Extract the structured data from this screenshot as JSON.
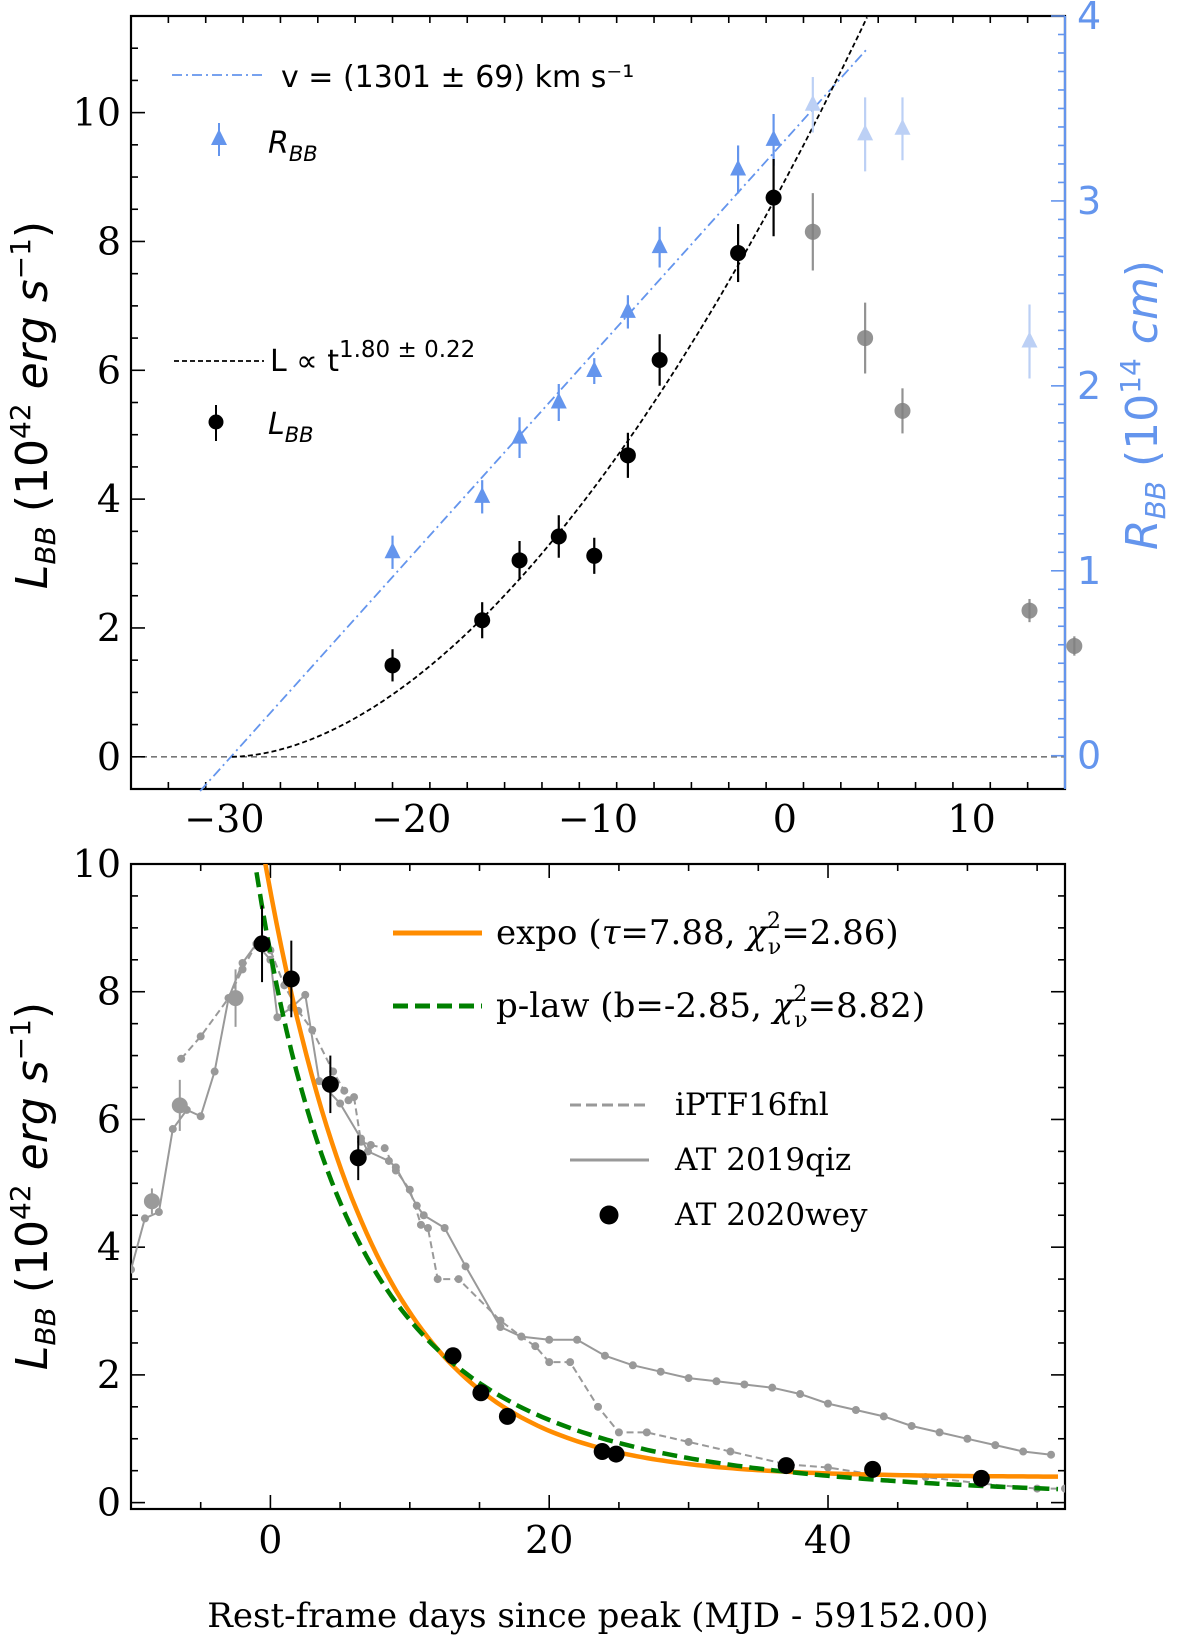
{
  "chart_data": [
    {
      "type": "scatter",
      "panel": "top",
      "xlim": [
        -35,
        15
      ],
      "ylim": [
        -0.5,
        11.5
      ],
      "y2lim": [
        -0.18,
        4.0
      ],
      "xticks": [
        -30,
        -20,
        -10,
        0,
        10
      ],
      "yticks": [
        0,
        2,
        4,
        6,
        8,
        10
      ],
      "y2ticks": [
        0,
        1,
        2,
        3,
        4
      ],
      "ylabel": "L_BB (10^42 erg s^-1)",
      "y2label": "R_BB (10^14 cm)",
      "legend": {
        "fit_v": "v = (1301 ± 69) km s⁻¹",
        "rbb": "R",
        "rbb_sub": "BB",
        "fit_l_prefix": "L ∝ t",
        "fit_l_exp": "1.80 ± 0.22",
        "lbb": "L",
        "lbb_sub": "BB"
      },
      "series": [
        {
          "name": "L_BB",
          "color": "#000000",
          "points": [
            [
              -21,
              1.42,
              0.25
            ],
            [
              -16.2,
              2.12,
              0.28
            ],
            [
              -14.2,
              3.05,
              0.3
            ],
            [
              -12.1,
              3.42,
              0.33
            ],
            [
              -10.2,
              3.12,
              0.28
            ],
            [
              -8.4,
              4.68,
              0.35
            ],
            [
              -6.7,
              6.16,
              0.4
            ],
            [
              -2.5,
              7.82,
              0.45
            ],
            [
              -0.6,
              8.68,
              0.6
            ]
          ]
        },
        {
          "name": "L_BB (excluded)",
          "color": "#808080",
          "points": [
            [
              1.5,
              8.15,
              0.6
            ],
            [
              4.3,
              6.5,
              0.55
            ],
            [
              6.3,
              5.37,
              0.35
            ],
            [
              13.1,
              2.27,
              0.18
            ],
            [
              15.5,
              1.72,
              0.15
            ]
          ]
        },
        {
          "name": "R_BB",
          "color": "#6495ed",
          "points": [
            [
              -21,
              1.1,
              0.09
            ],
            [
              -16.2,
              1.4,
              0.09
            ],
            [
              -14.2,
              1.72,
              0.11
            ],
            [
              -12.1,
              1.91,
              0.1
            ],
            [
              -10.2,
              2.08,
              0.07
            ],
            [
              -8.4,
              2.4,
              0.09
            ],
            [
              -6.7,
              2.75,
              0.11
            ],
            [
              -2.5,
              3.17,
              0.13
            ],
            [
              -0.6,
              3.33,
              0.14
            ]
          ]
        },
        {
          "name": "R_BB (excluded)",
          "color": "#bcd0f5",
          "points": [
            [
              1.5,
              3.52,
              0.15
            ],
            [
              4.3,
              3.36,
              0.2
            ],
            [
              6.3,
              3.39,
              0.17
            ],
            [
              13.1,
              2.24,
              0.2
            ]
          ]
        }
      ],
      "fits": {
        "velocity": {
          "t0": -29.6,
          "slope_R_per_day": 0.1124,
          "x_range": [
            -31.3,
            4.4
          ]
        },
        "power_law": {
          "t0": -29.6,
          "index": 1.8,
          "amp": 0.0201,
          "x_range": [
            -29.6,
            4.4
          ]
        }
      }
    },
    {
      "type": "line",
      "panel": "bottom",
      "xlim": [
        -10,
        57
      ],
      "ylim": [
        -0.1,
        10
      ],
      "xticks": [
        0,
        20,
        40
      ],
      "yticks": [
        0,
        2,
        4,
        6,
        8,
        10
      ],
      "xlabel": "Rest-frame days since peak (MJD - 59152.00)",
      "ylabel": "L_BB (10^42 erg s^-1)",
      "legend": {
        "expo_a": "expo (",
        "expo_tau": "τ",
        "expo_b": "=7.88, ",
        "expo_chi": "χ",
        "expo_c": "=2.86)",
        "plaw_a": "p-law (b=-2.85, ",
        "plaw_chi": "χ",
        "plaw_c": "=8.82)",
        "sup": "2",
        "sub": "ν",
        "iptf": "iPTF16fnl",
        "qiz": "AT 2019qiz",
        "wey": "AT 2020wey"
      },
      "series": [
        {
          "name": "AT 2020wey",
          "color": "#000000",
          "points": [
            [
              -0.6,
              8.75,
              0.6
            ],
            [
              1.5,
              8.2,
              0.6
            ],
            [
              4.3,
              6.55,
              0.45
            ],
            [
              6.3,
              5.4,
              0.35
            ],
            [
              13.1,
              2.3,
              0
            ],
            [
              15.1,
              1.72,
              0
            ],
            [
              17.0,
              1.35,
              0
            ],
            [
              23.8,
              0.8,
              0
            ],
            [
              24.8,
              0.76,
              0
            ],
            [
              37.0,
              0.58,
              0
            ],
            [
              43.2,
              0.52,
              0
            ],
            [
              51.0,
              0.38,
              0
            ]
          ]
        },
        {
          "name": "AT 2020wey (excluded)",
          "color": "#9a9a9a",
          "points": [
            [
              -8.5,
              4.72,
              0.2
            ],
            [
              -6.5,
              6.22,
              0.4
            ],
            [
              -2.5,
              7.9,
              0.45
            ]
          ]
        },
        {
          "name": "iPTF16fnl",
          "color": "#999999",
          "style": "dashed",
          "points": [
            [
              -6.4,
              6.95
            ],
            [
              -5.0,
              7.3
            ],
            [
              -3.0,
              7.9
            ],
            [
              -2.0,
              8.35
            ],
            [
              -1.0,
              8.75
            ],
            [
              0.0,
              8.65
            ],
            [
              1.0,
              8.1
            ],
            [
              2.0,
              7.7
            ],
            [
              3.0,
              7.4
            ],
            [
              4.5,
              6.75
            ],
            [
              5.3,
              6.45
            ],
            [
              5.6,
              6.3
            ],
            [
              6.0,
              6.35
            ],
            [
              6.5,
              5.65
            ],
            [
              7.2,
              5.6
            ],
            [
              8.2,
              5.55
            ],
            [
              9.0,
              5.2
            ],
            [
              10.0,
              4.9
            ],
            [
              10.8,
              4.35
            ],
            [
              11.3,
              4.3
            ],
            [
              12.0,
              3.5
            ],
            [
              13.5,
              3.5
            ],
            [
              16.5,
              2.85
            ],
            [
              18.0,
              2.6
            ],
            [
              19.0,
              2.45
            ],
            [
              20.0,
              2.2
            ],
            [
              21.5,
              2.2
            ],
            [
              23.5,
              1.5
            ],
            [
              25.0,
              1.1
            ],
            [
              27.0,
              1.1
            ],
            [
              30.0,
              0.95
            ],
            [
              33.0,
              0.8
            ],
            [
              37.0,
              0.6
            ],
            [
              40.0,
              0.55
            ],
            [
              43.0,
              0.45
            ],
            [
              47.0,
              0.4
            ],
            [
              51.0,
              0.3
            ],
            [
              55.0,
              0.22
            ],
            [
              57.0,
              0.22
            ]
          ]
        },
        {
          "name": "AT 2019qiz",
          "color": "#999999",
          "style": "solid",
          "points": [
            [
              -10.0,
              3.65
            ],
            [
              -9.0,
              4.45
            ],
            [
              -8.0,
              4.55
            ],
            [
              -7.0,
              5.85
            ],
            [
              -6.0,
              6.15
            ],
            [
              -5.0,
              6.05
            ],
            [
              -4.0,
              6.75
            ],
            [
              -3.0,
              7.9
            ],
            [
              -2.0,
              8.45
            ],
            [
              -1.0,
              8.75
            ],
            [
              0.0,
              8.5
            ],
            [
              0.5,
              7.6
            ],
            [
              1.5,
              7.75
            ],
            [
              2.5,
              7.95
            ],
            [
              3.5,
              6.6
            ],
            [
              5.0,
              6.25
            ],
            [
              6.5,
              5.7
            ],
            [
              7.0,
              5.5
            ],
            [
              8.5,
              5.35
            ],
            [
              9.0,
              5.25
            ],
            [
              10.5,
              4.65
            ],
            [
              11.0,
              4.5
            ],
            [
              12.5,
              4.3
            ],
            [
              14.0,
              3.7
            ],
            [
              16.5,
              2.75
            ],
            [
              18.0,
              2.6
            ],
            [
              20.0,
              2.55
            ],
            [
              22.0,
              2.55
            ],
            [
              24.0,
              2.3
            ],
            [
              26.0,
              2.15
            ],
            [
              28.0,
              2.05
            ],
            [
              30.0,
              1.95
            ],
            [
              32.0,
              1.9
            ],
            [
              34.0,
              1.85
            ],
            [
              36.0,
              1.8
            ],
            [
              38.0,
              1.7
            ],
            [
              40.0,
              1.55
            ],
            [
              42.0,
              1.45
            ],
            [
              44.0,
              1.35
            ],
            [
              46.0,
              1.2
            ],
            [
              48.0,
              1.1
            ],
            [
              50.0,
              1.0
            ],
            [
              52.0,
              0.9
            ],
            [
              54.0,
              0.8
            ],
            [
              56.0,
              0.75
            ]
          ]
        }
      ],
      "fits": {
        "expo": {
          "tau": 7.88,
          "chi2nu": 2.86,
          "amp": 9.17,
          "offset": 0.4,
          "color": "#ff8c00"
        },
        "plaw": {
          "b": -2.85,
          "chi2nu": 8.82,
          "t0": -21.2,
          "amp": 8.6,
          "color": "#008000"
        }
      }
    }
  ]
}
